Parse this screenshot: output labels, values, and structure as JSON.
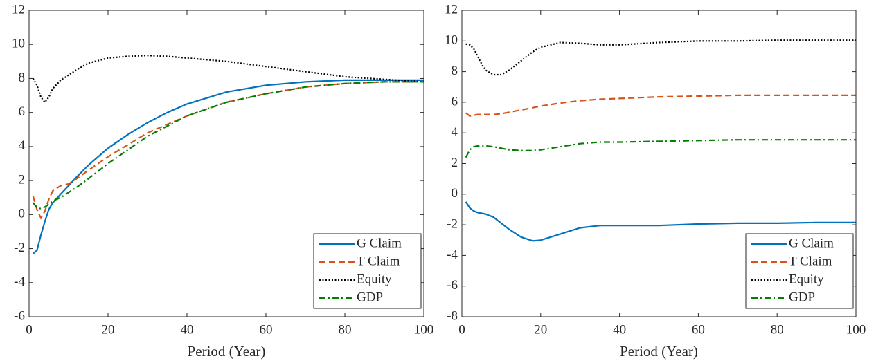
{
  "chart_data": [
    {
      "type": "line",
      "x_label": "Period (Year)",
      "legend": "lower right",
      "x": [
        1,
        2,
        3,
        4,
        5,
        6,
        8,
        10,
        12,
        15,
        20,
        25,
        30,
        35,
        40,
        50,
        60,
        70,
        80,
        90,
        100
      ],
      "xlim": [
        0,
        100
      ],
      "xticks": [
        0,
        20,
        40,
        60,
        80,
        100
      ],
      "ylim": [
        -6,
        12
      ],
      "yticks": [
        -6,
        -4,
        -2,
        0,
        2,
        4,
        6,
        8,
        10,
        12
      ],
      "series": [
        {
          "name": "G Claim",
          "color": "#0072bd",
          "style": "solid",
          "values": [
            -2.3,
            -2.1,
            -1.2,
            -0.4,
            0.3,
            0.7,
            1.2,
            1.7,
            2.2,
            2.9,
            3.9,
            4.7,
            5.4,
            6.0,
            6.5,
            7.2,
            7.6,
            7.8,
            7.9,
            7.9,
            7.9
          ]
        },
        {
          "name": "T Claim",
          "color": "#d95319",
          "style": "dashed",
          "values": [
            1.1,
            0.3,
            -0.2,
            0.2,
            0.9,
            1.4,
            1.7,
            1.8,
            2.1,
            2.6,
            3.4,
            4.1,
            4.8,
            5.3,
            5.8,
            6.6,
            7.1,
            7.5,
            7.7,
            7.8,
            7.8
          ]
        },
        {
          "name": "Equity",
          "color": "#000000",
          "style": "dotted",
          "values": [
            8.0,
            7.6,
            6.9,
            6.6,
            6.9,
            7.4,
            7.9,
            8.2,
            8.5,
            8.9,
            9.2,
            9.3,
            9.35,
            9.3,
            9.2,
            9.0,
            8.7,
            8.4,
            8.1,
            7.95,
            7.8
          ]
        },
        {
          "name": "GDP",
          "color": "#008000",
          "style": "dashdot",
          "values": [
            0.7,
            0.4,
            0.35,
            0.45,
            0.6,
            0.8,
            1.0,
            1.3,
            1.6,
            2.1,
            3.0,
            3.8,
            4.6,
            5.2,
            5.8,
            6.6,
            7.1,
            7.5,
            7.7,
            7.8,
            7.8
          ]
        }
      ]
    },
    {
      "type": "line",
      "x_label": "Period (Year)",
      "legend": "lower right",
      "x": [
        1,
        2,
        3,
        4,
        5,
        6,
        8,
        10,
        12,
        15,
        18,
        20,
        25,
        30,
        35,
        40,
        50,
        60,
        70,
        80,
        90,
        100
      ],
      "xlim": [
        0,
        100
      ],
      "xticks": [
        0,
        20,
        40,
        60,
        80,
        100
      ],
      "ylim": [
        -8,
        12
      ],
      "yticks": [
        -8,
        -6,
        -4,
        -2,
        0,
        2,
        4,
        6,
        8,
        10,
        12
      ],
      "series": [
        {
          "name": "G Claim",
          "color": "#0072bd",
          "style": "solid",
          "values": [
            -0.5,
            -0.9,
            -1.1,
            -1.2,
            -1.25,
            -1.3,
            -1.5,
            -1.9,
            -2.3,
            -2.8,
            -3.05,
            -3.0,
            -2.6,
            -2.2,
            -2.05,
            -2.05,
            -2.05,
            -1.95,
            -1.9,
            -1.9,
            -1.85,
            -1.85
          ]
        },
        {
          "name": "T Claim",
          "color": "#d95319",
          "style": "dashed",
          "values": [
            5.3,
            5.1,
            5.15,
            5.2,
            5.2,
            5.2,
            5.2,
            5.25,
            5.35,
            5.5,
            5.65,
            5.75,
            5.95,
            6.1,
            6.2,
            6.25,
            6.35,
            6.4,
            6.45,
            6.45,
            6.45,
            6.45
          ]
        },
        {
          "name": "Equity",
          "color": "#000000",
          "style": "dotted",
          "values": [
            9.8,
            9.75,
            9.5,
            9.0,
            8.5,
            8.1,
            7.8,
            7.8,
            8.1,
            8.7,
            9.3,
            9.6,
            9.9,
            9.85,
            9.75,
            9.75,
            9.9,
            10.0,
            10.0,
            10.05,
            10.05,
            10.05
          ]
        },
        {
          "name": "GDP",
          "color": "#008000",
          "style": "dashdot",
          "values": [
            2.4,
            2.9,
            3.1,
            3.15,
            3.15,
            3.15,
            3.1,
            3.0,
            2.9,
            2.85,
            2.85,
            2.9,
            3.1,
            3.3,
            3.4,
            3.4,
            3.45,
            3.5,
            3.55,
            3.55,
            3.55,
            3.55
          ]
        }
      ]
    }
  ]
}
